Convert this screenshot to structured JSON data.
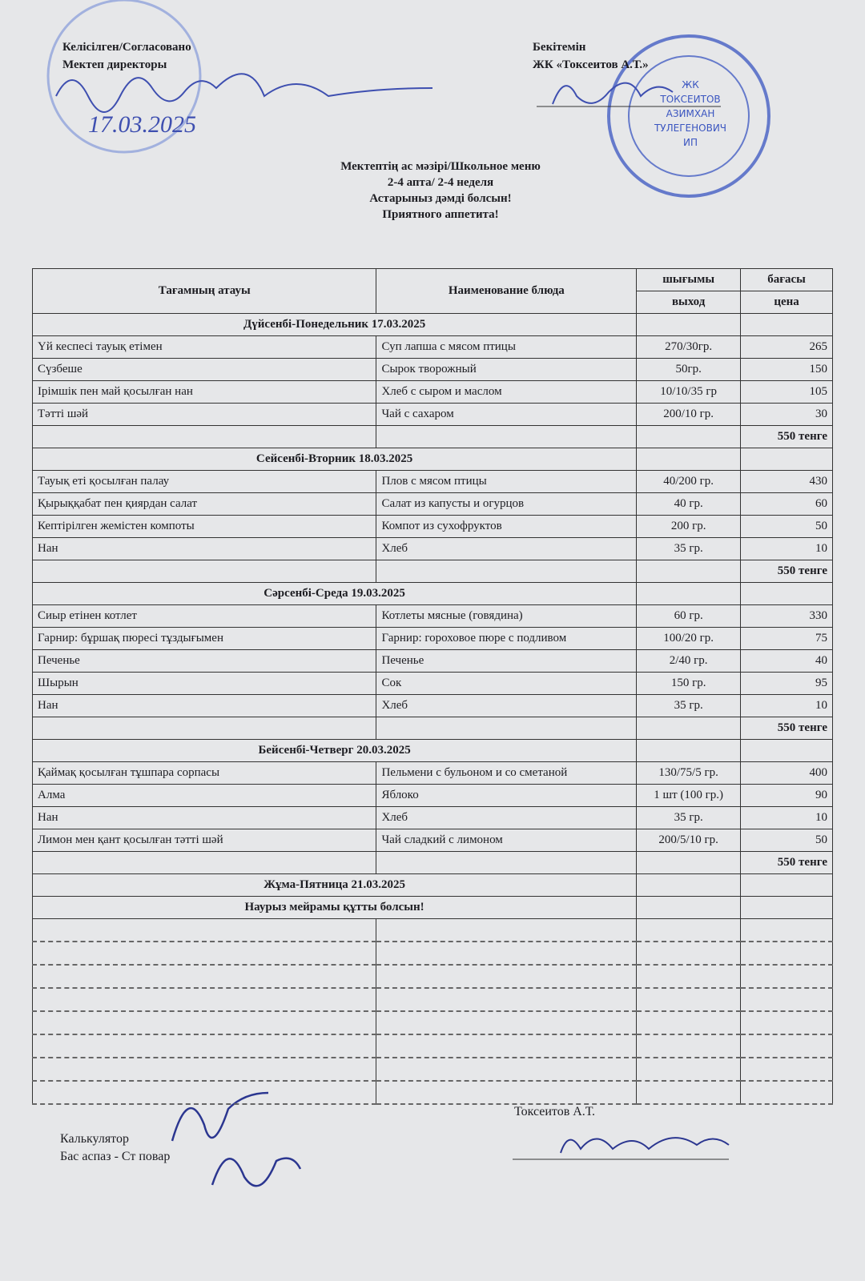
{
  "header": {
    "approved_left": [
      "Келісілген/Согласовано",
      "Мектеп директоры"
    ],
    "left_date": "17.03.2025",
    "approved_right": [
      "Бекітемін",
      "ЖК «Токсеитов А.Т.»"
    ],
    "stamp": [
      "ЖК",
      "ТОКСЕИТОВ",
      "АЗИМХАН",
      "ТУЛЕГЕНОВИЧ",
      "ИП"
    ]
  },
  "title": [
    "Мектептің ас мәзірі/Школьное меню",
    "2-4 апта/ 2-4 неделя",
    "Астарыныз дәмді болсын!",
    "Приятного аппетита!"
  ],
  "table": {
    "columns": {
      "kz": "Тағамның атауы",
      "ru": "Наименование блюда",
      "output": [
        "шығымы",
        "выход"
      ],
      "price": [
        "бағасы",
        "цена"
      ]
    },
    "days": [
      {
        "day": "Дүйсенбі-Понедельник 17.03.2025",
        "rows": [
          [
            "Үй кеспесі тауық етімен",
            "Суп лапша с мясом птицы",
            "270/30гр.",
            265
          ],
          [
            "Сүзбеше",
            "Сырок творожный",
            "50гр.",
            150
          ],
          [
            "Ірімшік пен май қосылған нан",
            "Хлеб с сыром и маслом",
            "10/10/35 гр",
            105
          ],
          [
            "Тәтті шәй",
            "Чай с сахаром",
            "200/10 гр.",
            30
          ]
        ],
        "total": "550 тенге"
      },
      {
        "day": "Сейсенбі-Вторник 18.03.2025",
        "rows": [
          [
            "Тауық еті қосылған палау",
            "Плов с мясом птицы",
            "40/200 гр.",
            430
          ],
          [
            "Қырыққабат пен қиярдан салат",
            "Салат из капусты и огурцов",
            "40 гр.",
            60
          ],
          [
            "Кептірілген жемістен компоты",
            "Компот из сухофруктов",
            "200 гр.",
            50
          ],
          [
            "Нан",
            "Хлеб",
            "35 гр.",
            10
          ]
        ],
        "total": "550 тенге"
      },
      {
        "day": "Сәрсенбі-Среда 19.03.2025",
        "rows": [
          [
            "Сиыр етінен котлет",
            "Котлеты мясные (говядина)",
            "60 гр.",
            330
          ],
          [
            "Гарнир: бұршақ пюресі тұздығымен",
            "Гарнир: гороховое пюре с подливом",
            "100/20 гр.",
            75
          ],
          [
            "Печенье",
            "Печенье",
            "2/40 гр.",
            40
          ],
          [
            "Шырын",
            "Сок",
            "150 гр.",
            95
          ],
          [
            "Нан",
            "Хлеб",
            "35 гр.",
            10
          ]
        ],
        "total": "550 тенге"
      },
      {
        "day": "Бейсенбі-Четверг 20.03.2025",
        "rows": [
          [
            "Қаймақ қосылған тұшпара сорпасы",
            "Пельмени с бульоном и со сметаной",
            "130/75/5 гр.",
            400
          ],
          [
            "Алма",
            "Яблоко",
            "1 шт (100 гр.)",
            90
          ],
          [
            "Нан",
            "Хлеб",
            "35 гр.",
            10
          ],
          [
            "Лимон мен қант қосылған тәтті шәй",
            "Чай сладкий с лимоном",
            "200/5/10 гр.",
            50
          ]
        ],
        "total": "550 тенге"
      }
    ],
    "holiday": {
      "day": "Жұма-Пятница 21.03.2025",
      "greeting": "Наурыз мейрамы құтты болсын!"
    }
  },
  "footer": {
    "left": [
      "Калькулятор",
      "Бас аспаз - Ст повар"
    ],
    "right": "Токсеитов А.Т."
  }
}
